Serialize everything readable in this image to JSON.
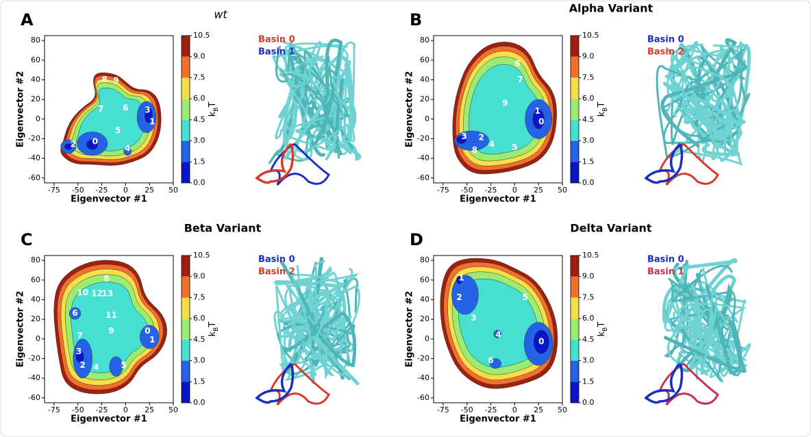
{
  "chart_data": [
    {
      "type": "contour",
      "panel": "A",
      "title": "wt",
      "title_style": "italic",
      "xlabel": "Eigenvector #1",
      "ylabel": "Eigenvector #2",
      "xlim": [
        -85,
        50
      ],
      "ylim": [
        -65,
        85
      ],
      "xticks": [
        -75,
        -50,
        -25,
        0,
        25,
        50
      ],
      "yticks": [
        -60,
        -40,
        -20,
        0,
        20,
        40,
        60,
        80
      ],
      "colorbar": {
        "ticks": [
          {
            "value": 0,
            "label": "0.0"
          },
          1.5,
          {
            "value": 3,
            "label": "3.0"
          },
          4.5,
          {
            "value": 6,
            "label": "6.0"
          },
          7.5,
          {
            "value": 9,
            "label": "9.0"
          },
          10.5
        ],
        "colors": [
          "#0a14c8",
          "#2462e6",
          "#46e0d2",
          "#9aec72",
          "#f8de48",
          "#f2702e",
          "#a0200f"
        ],
        "label": [
          "k",
          "B",
          "T"
        ]
      },
      "annotations": [
        {
          "text": "8",
          "x": -22,
          "y": 40
        },
        {
          "text": "9",
          "x": -10,
          "y": 39
        },
        {
          "text": "7",
          "x": -26,
          "y": 10
        },
        {
          "text": "6",
          "x": 0,
          "y": 11
        },
        {
          "text": "3",
          "x": 23,
          "y": 9
        },
        {
          "text": "1",
          "x": 28,
          "y": -3
        },
        {
          "text": "5",
          "x": -8,
          "y": -12
        },
        {
          "text": "0",
          "x": -32,
          "y": -23
        },
        {
          "text": "2",
          "x": -55,
          "y": -26
        },
        {
          "text": "4",
          "x": 2,
          "y": -30
        }
      ],
      "legend": [
        {
          "name": "Basin 0",
          "color": "#d63a2a"
        },
        {
          "name": "Basin 1",
          "color": "#1a2fc0"
        }
      ]
    },
    {
      "type": "contour",
      "panel": "B",
      "title": "Alpha Variant",
      "title_style": "bold",
      "xlabel": "Eigenvector #1",
      "ylabel": "Eigenvector #2",
      "xlim": [
        -85,
        50
      ],
      "ylim": [
        -65,
        85
      ],
      "xticks": [
        -75,
        -50,
        -25,
        0,
        25,
        50
      ],
      "yticks": [
        -60,
        -40,
        -20,
        0,
        20,
        40,
        60,
        80
      ],
      "colorbar": {
        "ticks": [
          {
            "value": 0,
            "label": "0.0"
          },
          1.5,
          {
            "value": 3,
            "label": "3.0"
          },
          4.5,
          {
            "value": 6,
            "label": "6.0"
          },
          7.5,
          {
            "value": 9,
            "label": "9.0"
          },
          10.5
        ],
        "colors": [
          "#0a14c8",
          "#2462e6",
          "#46e0d2",
          "#9aec72",
          "#f8de48",
          "#f2702e",
          "#a0200f"
        ],
        "label": [
          "k",
          "B",
          "T"
        ]
      },
      "annotations": [
        {
          "text": "6",
          "x": 3,
          "y": 56
        },
        {
          "text": "7",
          "x": 6,
          "y": 40
        },
        {
          "text": "9",
          "x": -10,
          "y": 16
        },
        {
          "text": "1",
          "x": 24,
          "y": 8
        },
        {
          "text": "0",
          "x": 28,
          "y": -3
        },
        {
          "text": "3",
          "x": -53,
          "y": -18
        },
        {
          "text": "2",
          "x": -35,
          "y": -19
        },
        {
          "text": "4",
          "x": -24,
          "y": -26
        },
        {
          "text": "8",
          "x": -42,
          "y": -32
        },
        {
          "text": "5",
          "x": 0,
          "y": -29
        }
      ],
      "legend": [
        {
          "name": "Basin 0",
          "color": "#1a2fc0"
        },
        {
          "name": "Basin 2",
          "color": "#d63a2a"
        }
      ]
    },
    {
      "type": "contour",
      "panel": "C",
      "title": "Beta Variant",
      "title_style": "bold",
      "xlabel": "Eigenvector #1",
      "ylabel": "Eigenvector #2",
      "xlim": [
        -85,
        50
      ],
      "ylim": [
        -65,
        85
      ],
      "xticks": [
        -75,
        -50,
        -25,
        0,
        25,
        50
      ],
      "yticks": [
        -60,
        -40,
        -20,
        0,
        20,
        40,
        60,
        80
      ],
      "colorbar": {
        "ticks": [
          {
            "value": 0,
            "label": "0.0"
          },
          1.5,
          {
            "value": 3,
            "label": "3.0"
          },
          4.5,
          {
            "value": 6,
            "label": "6.0"
          },
          7.5,
          {
            "value": 9,
            "label": "9.0"
          },
          10.5
        ],
        "colors": [
          "#0a14c8",
          "#2462e6",
          "#46e0d2",
          "#9aec72",
          "#f8de48",
          "#f2702e",
          "#a0200f"
        ],
        "label": [
          "k",
          "B",
          "T"
        ]
      },
      "annotations": [
        {
          "text": "8",
          "x": -20,
          "y": 61
        },
        {
          "text": "10",
          "x": -45,
          "y": 47
        },
        {
          "text": "12",
          "x": -30,
          "y": 46
        },
        {
          "text": "13",
          "x": -19,
          "y": 46
        },
        {
          "text": "6",
          "x": -53,
          "y": 26
        },
        {
          "text": "11",
          "x": -15,
          "y": 24
        },
        {
          "text": "0",
          "x": 23,
          "y": 8
        },
        {
          "text": "1",
          "x": 28,
          "y": -1
        },
        {
          "text": "9",
          "x": -15,
          "y": 8
        },
        {
          "text": "7",
          "x": -48,
          "y": 3
        },
        {
          "text": "3",
          "x": -49,
          "y": -13
        },
        {
          "text": "2",
          "x": -45,
          "y": -27
        },
        {
          "text": "4",
          "x": -31,
          "y": -29
        },
        {
          "text": "5",
          "x": -2,
          "y": -27
        }
      ],
      "legend": [
        {
          "name": "Basin 0",
          "color": "#1a2fc0"
        },
        {
          "name": "Basin 2",
          "color": "#d63a2a"
        }
      ]
    },
    {
      "type": "contour",
      "panel": "D",
      "title": "Delta Variant",
      "title_style": "bold",
      "xlabel": "Eigenvector #1",
      "ylabel": "Eigenvector #2",
      "xlim": [
        -85,
        50
      ],
      "ylim": [
        -65,
        85
      ],
      "xticks": [
        -75,
        -50,
        -25,
        0,
        25,
        50
      ],
      "yticks": [
        -60,
        -40,
        -20,
        0,
        20,
        40,
        60,
        80
      ],
      "colorbar": {
        "ticks": [
          {
            "value": 0,
            "label": "0.0"
          },
          1.5,
          {
            "value": 3,
            "label": "3.0"
          },
          4.5,
          {
            "value": 6,
            "label": "6.0"
          },
          7.5,
          {
            "value": 9,
            "label": "9.0"
          },
          10.5
        ],
        "colors": [
          "#0a14c8",
          "#2462e6",
          "#46e0d2",
          "#9aec72",
          "#f8de48",
          "#f2702e",
          "#a0200f"
        ],
        "label": [
          "k",
          "B",
          "T"
        ]
      },
      "annotations": [
        {
          "text": "1",
          "x": -56,
          "y": 62
        },
        {
          "text": "2",
          "x": -58,
          "y": 42
        },
        {
          "text": "5",
          "x": 11,
          "y": 42
        },
        {
          "text": "3",
          "x": -43,
          "y": 21
        },
        {
          "text": "4",
          "x": -17,
          "y": 4
        },
        {
          "text": "0",
          "x": 28,
          "y": -3
        },
        {
          "text": "6",
          "x": -25,
          "y": -22
        }
      ],
      "legend": [
        {
          "name": "Basin 0",
          "color": "#1a2fc0"
        },
        {
          "name": "Basin 1",
          "color": "#c83050"
        }
      ]
    }
  ]
}
